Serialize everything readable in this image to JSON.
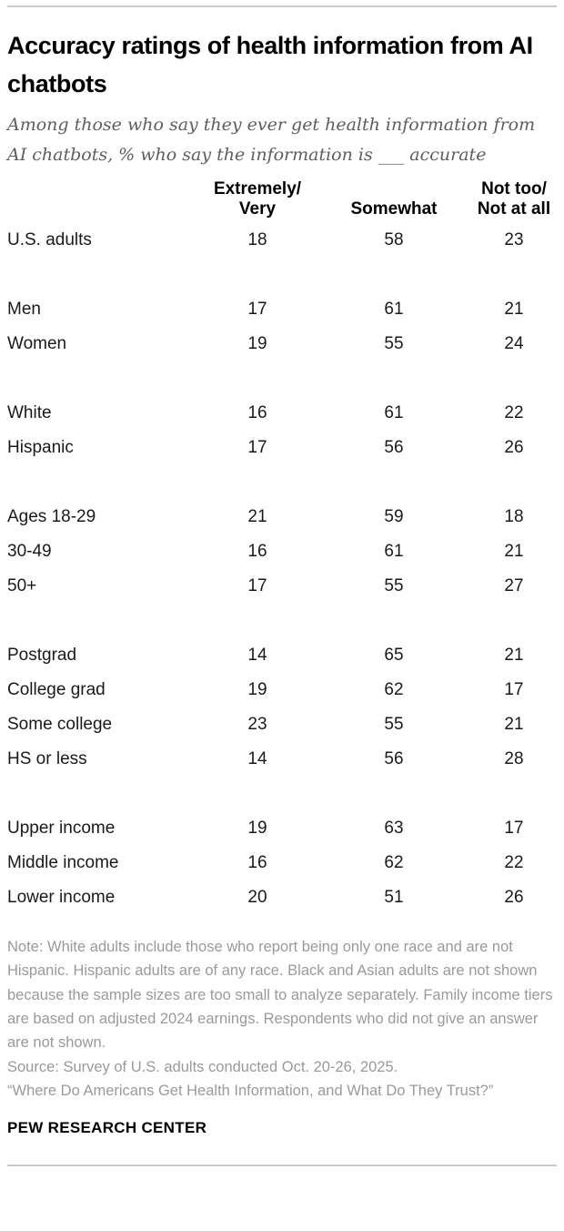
{
  "colors": {
    "title": "#000000",
    "subtitle": "#5e5e62",
    "table_text": "#1a1a1a",
    "note": "#9a9a9a",
    "rule": "#c9c9c9",
    "background": "#ffffff"
  },
  "header": {
    "title": "Accuracy ratings of health information from AI chatbots",
    "subtitle": "Among those who say they ever get health information from AI chatbots, % who say the information is ___ accurate"
  },
  "table": {
    "columns": [
      "Extremely/\nVery",
      "Somewhat",
      "Not too/\nNot at all"
    ],
    "groups": [
      {
        "rows": [
          {
            "label": "U.S. adults",
            "values": [
              18,
              58,
              23
            ]
          }
        ]
      },
      {
        "rows": [
          {
            "label": "Men",
            "values": [
              17,
              61,
              21
            ]
          },
          {
            "label": "Women",
            "values": [
              19,
              55,
              24
            ]
          }
        ]
      },
      {
        "rows": [
          {
            "label": "White",
            "values": [
              16,
              61,
              22
            ]
          },
          {
            "label": "Hispanic",
            "values": [
              17,
              56,
              26
            ]
          }
        ]
      },
      {
        "rows": [
          {
            "label": "Ages 18-29",
            "values": [
              21,
              59,
              18
            ]
          },
          {
            "label": "30-49",
            "values": [
              16,
              61,
              21
            ]
          },
          {
            "label": "50+",
            "values": [
              17,
              55,
              27
            ]
          }
        ]
      },
      {
        "rows": [
          {
            "label": "Postgrad",
            "values": [
              14,
              65,
              21
            ]
          },
          {
            "label": "College grad",
            "values": [
              19,
              62,
              17
            ]
          },
          {
            "label": "Some college",
            "values": [
              23,
              55,
              21
            ]
          },
          {
            "label": "HS or less",
            "values": [
              14,
              56,
              28
            ]
          }
        ]
      },
      {
        "rows": [
          {
            "label": "Upper income",
            "values": [
              19,
              63,
              17
            ]
          },
          {
            "label": "Middle income",
            "values": [
              16,
              62,
              22
            ]
          },
          {
            "label": "Lower income",
            "values": [
              20,
              51,
              26
            ]
          }
        ]
      }
    ]
  },
  "footer": {
    "note": "Note: White adults include those who report being only one race and are not Hispanic. Hispanic adults are of any race. Black and Asian adults are not shown because the sample sizes are too small to analyze separately. Family income tiers are based on adjusted 2024 earnings. Respondents who did not give an answer are not shown.",
    "source": "Source: Survey of U.S. adults conducted Oct. 20-26, 2025.",
    "quote": "“Where Do Americans Get Health Information, and What Do They Trust?”",
    "brand": "PEW RESEARCH CENTER"
  },
  "chart_data": {
    "type": "table",
    "title": "Accuracy ratings of health information from AI chatbots",
    "subtitle": "Among those who say they ever get health information from AI chatbots, % who say the information is ___ accurate",
    "columns": [
      "Extremely/Very",
      "Somewhat",
      "Not too/Not at all"
    ],
    "categories": [
      "U.S. adults",
      "Men",
      "Women",
      "White",
      "Hispanic",
      "Ages 18-29",
      "30-49",
      "50+",
      "Postgrad",
      "College grad",
      "Some college",
      "HS or less",
      "Upper income",
      "Middle income",
      "Lower income"
    ],
    "series": [
      {
        "name": "Extremely/Very",
        "values": [
          18,
          17,
          19,
          16,
          17,
          21,
          16,
          17,
          14,
          19,
          23,
          14,
          19,
          16,
          20
        ]
      },
      {
        "name": "Somewhat",
        "values": [
          58,
          61,
          55,
          61,
          56,
          59,
          61,
          55,
          65,
          62,
          55,
          56,
          63,
          62,
          51
        ]
      },
      {
        "name": "Not too/Not at all",
        "values": [
          23,
          21,
          24,
          22,
          26,
          18,
          21,
          27,
          21,
          17,
          21,
          28,
          17,
          22,
          26
        ]
      }
    ],
    "value_unit": "percent",
    "layout": "row labels left, three centered numeric columns, grouped with blank separator rows"
  }
}
